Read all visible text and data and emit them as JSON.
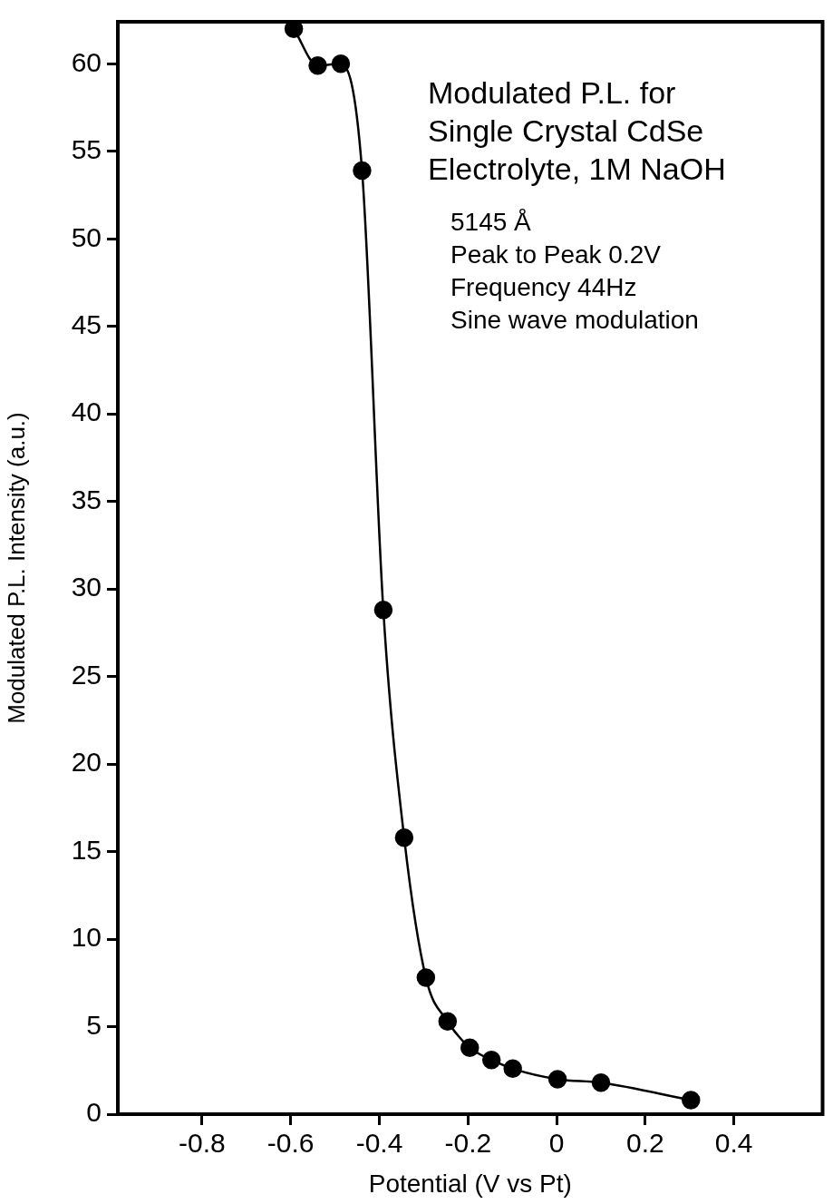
{
  "chart_data": {
    "type": "line",
    "xlabel": "Potential (V vs Pt)",
    "ylabel": "Modulated P.L. Intensity (a.u.)",
    "annotations": [
      "Modulated P.L. for",
      "Single Crystal CdSe",
      "Electrolyte, 1M NaOH",
      "5145 Å",
      "Peak to Peak 0.2V",
      "Frequency 44Hz",
      "Sine wave modulation"
    ],
    "xlim": [
      -0.99,
      0.6
    ],
    "xticks": [
      -0.8,
      -0.6,
      -0.4,
      -0.2,
      0,
      0.2,
      0.4
    ],
    "ylim": [
      0,
      62.4
    ],
    "yticks": [
      0,
      5,
      10,
      15,
      20,
      25,
      30,
      35,
      40,
      45,
      50,
      55,
      60
    ],
    "marker": "circle",
    "line_style": "solid",
    "grid": false,
    "legend": false,
    "series": [
      {
        "color": "#000000",
        "x": [
          -0.593,
          -0.539,
          -0.487,
          -0.439,
          -0.391,
          -0.344,
          -0.295,
          -0.246,
          -0.196,
          -0.147,
          -0.099,
          0.002,
          0.1,
          0.303
        ],
        "values": [
          62.0,
          59.9,
          60.0,
          53.9,
          28.8,
          15.8,
          7.8,
          5.3,
          3.8,
          3.1,
          2.6,
          2.0,
          1.8,
          0.8
        ]
      }
    ]
  }
}
